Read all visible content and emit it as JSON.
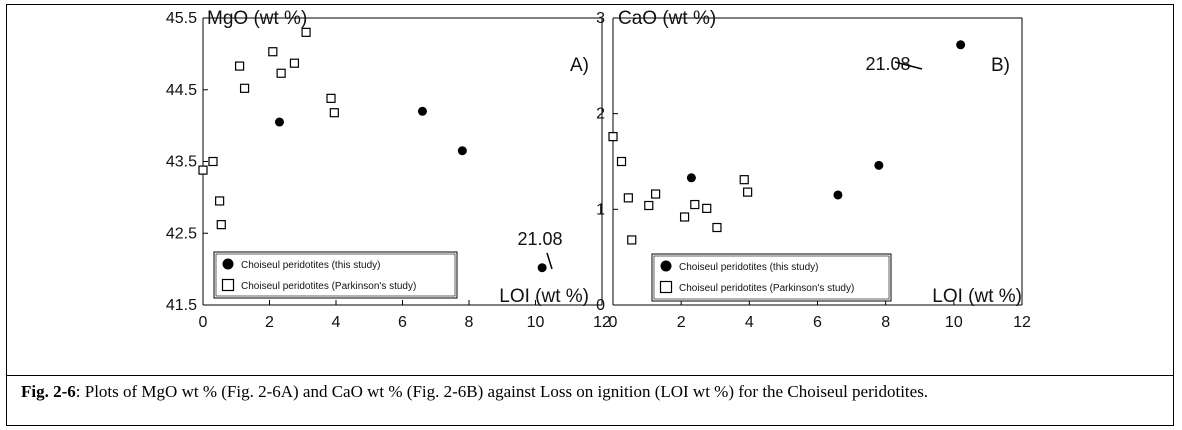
{
  "chart_data": [
    {
      "type": "scatter",
      "panel_label": "A)",
      "ylabel": "MgO (wt %)",
      "xlabel": "LOI (wt %)",
      "xlim": [
        0,
        12
      ],
      "ylim": [
        41.5,
        45.5
      ],
      "x_ticks": [
        "0",
        "2",
        "4",
        "6",
        "8",
        "10",
        "12"
      ],
      "y_ticks": [
        "41.5",
        "42.5",
        "43.5",
        "44.5",
        "45.5"
      ],
      "annotation": {
        "text": "21.08",
        "x": 10.2,
        "y": 42.02
      },
      "series": [
        {
          "name": "Choiseul peridotites (this study)",
          "marker": "filled-circle",
          "points": [
            [
              2.3,
              44.05
            ],
            [
              6.6,
              44.2
            ],
            [
              7.8,
              43.65
            ],
            [
              10.2,
              42.02
            ]
          ]
        },
        {
          "name": "Choiseul peridotites (Parkinson's study)",
          "marker": "open-square",
          "points": [
            [
              0.0,
              43.38
            ],
            [
              0.3,
              43.5
            ],
            [
              0.5,
              42.95
            ],
            [
              0.55,
              42.62
            ],
            [
              1.1,
              44.83
            ],
            [
              1.25,
              44.52
            ],
            [
              2.1,
              45.03
            ],
            [
              2.35,
              44.73
            ],
            [
              2.75,
              44.87
            ],
            [
              3.1,
              45.3
            ],
            [
              3.85,
              44.38
            ],
            [
              3.95,
              44.18
            ]
          ]
        }
      ]
    },
    {
      "type": "scatter",
      "panel_label": "B)",
      "ylabel": "CaO (wt %)",
      "xlabel": "LOI (wt %)",
      "xlim": [
        0,
        12
      ],
      "ylim": [
        0,
        3
      ],
      "x_ticks": [
        "0",
        "2",
        "4",
        "6",
        "8",
        "10",
        "12"
      ],
      "y_ticks": [
        "0",
        "1",
        "2",
        "3"
      ],
      "annotation": {
        "text": "21.08",
        "x": 10.2,
        "y": 2.72
      },
      "series": [
        {
          "name": "Choiseul peridotites (this study)",
          "marker": "filled-circle",
          "points": [
            [
              2.3,
              1.33
            ],
            [
              6.6,
              1.15
            ],
            [
              7.8,
              1.46
            ],
            [
              10.2,
              2.72
            ]
          ]
        },
        {
          "name": "Choiseul peridotites (Parkinson's study)",
          "marker": "open-square",
          "points": [
            [
              0.0,
              1.76
            ],
            [
              0.25,
              1.5
            ],
            [
              0.45,
              1.12
            ],
            [
              0.55,
              0.68
            ],
            [
              1.05,
              1.04
            ],
            [
              1.25,
              1.16
            ],
            [
              2.1,
              0.92
            ],
            [
              2.4,
              1.05
            ],
            [
              2.75,
              1.01
            ],
            [
              3.05,
              0.81
            ],
            [
              3.85,
              1.31
            ],
            [
              3.95,
              1.18
            ]
          ]
        }
      ]
    }
  ],
  "caption": {
    "fig_label": "Fig. 2-6",
    "text": ": Plots of MgO wt % (Fig. 2-6A) and CaO wt % (Fig. 2-6B) against Loss on ignition (LOI wt %) for the Choiseul peridotites."
  }
}
